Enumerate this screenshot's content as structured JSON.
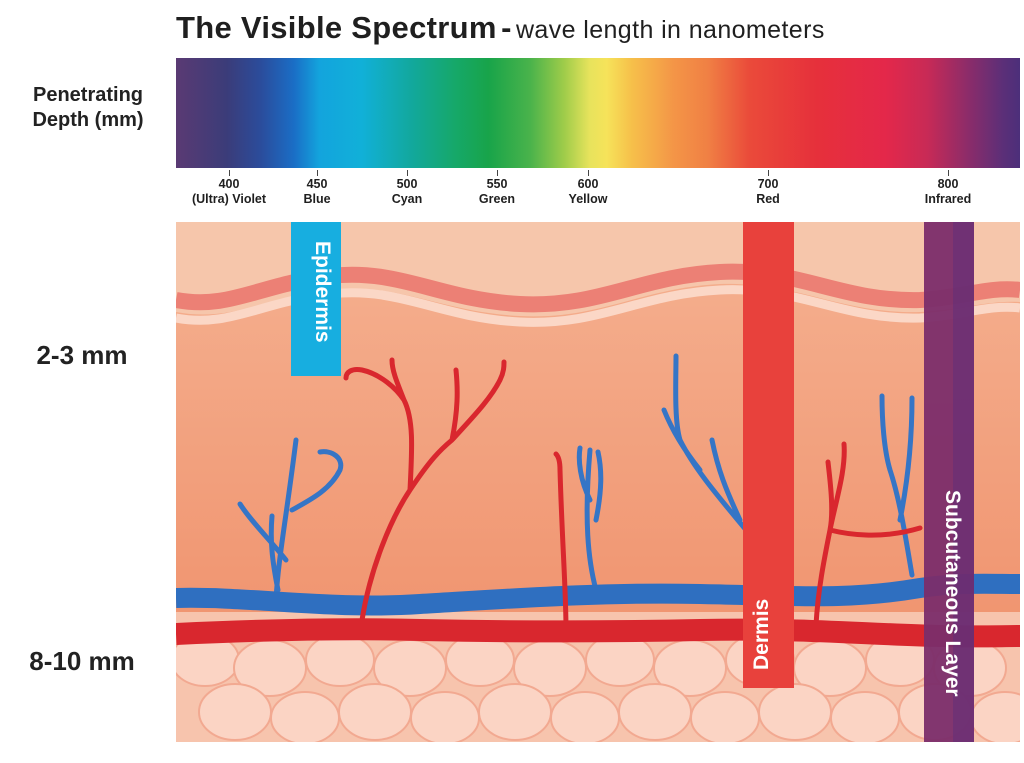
{
  "title": {
    "main": "The Visible Spectrum",
    "separator": "-",
    "sub": "wave length in nanometers"
  },
  "side_labels": {
    "penetrating_line1": "Penetrating",
    "penetrating_line2": "Depth (mm)",
    "depth_shallow": "2-3 mm",
    "depth_deep": "8-10 mm"
  },
  "ticks": [
    {
      "nm": "400",
      "name": "(Ultra) Violet"
    },
    {
      "nm": "450",
      "name": "Blue"
    },
    {
      "nm": "500",
      "name": "Cyan"
    },
    {
      "nm": "550",
      "name": "Green"
    },
    {
      "nm": "600",
      "name": "Yellow"
    },
    {
      "nm": "700",
      "name": "Red"
    },
    {
      "nm": "800",
      "name": "Infrared"
    }
  ],
  "bands": {
    "epidermis": "Epidermis",
    "dermis": "Dermis",
    "subcutaneous": "Subcutaneous Layer"
  },
  "colors": {
    "blue_band": "#17aee0",
    "red_band": "#e8413c",
    "infrared_band": "#7b2d6a",
    "vein": "#2f6fc0",
    "artery": "#d9272e",
    "skin_top": "#f6c4a8",
    "dermis": "#f09b77",
    "fat": "#f7bda6"
  }
}
